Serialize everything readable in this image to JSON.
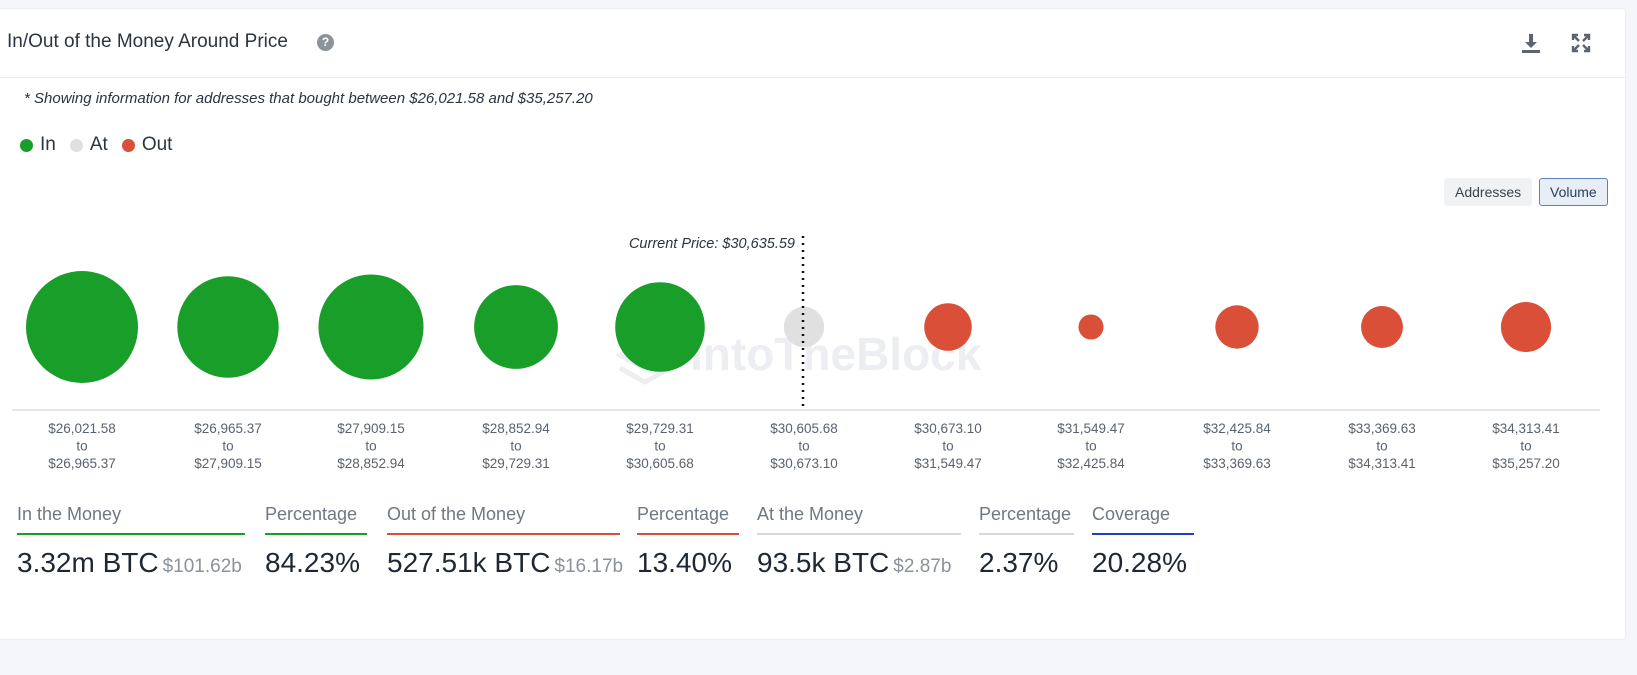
{
  "header": {
    "title": "In/Out of the Money Around Price",
    "help_icon": "question-circle-icon",
    "download_icon": "download-icon",
    "expand_icon": "expand-icon"
  },
  "note": "* Showing information for addresses that bought between $26,021.58 and $35,257.20",
  "legend": [
    {
      "label": "In",
      "color": "#1a9e2a"
    },
    {
      "label": "At",
      "color": "#e0e0e0"
    },
    {
      "label": "Out",
      "color": "#d94f38"
    }
  ],
  "toggles": {
    "addresses": "Addresses",
    "volume": "Volume",
    "selected": "Volume"
  },
  "chart_data": {
    "type": "bubble",
    "current_price_label": "Current Price: $30,635.59",
    "current_price": 30635.59,
    "watermark": "IntoTheBlock",
    "categories": [
      {
        "from": "$26,021.58",
        "to": "$26,965.37",
        "status": "In",
        "relative_size": 1.0
      },
      {
        "from": "$26,965.37",
        "to": "$27,909.15",
        "status": "In",
        "relative_size": 0.82
      },
      {
        "from": "$27,909.15",
        "to": "$28,852.94",
        "status": "In",
        "relative_size": 0.88
      },
      {
        "from": "$28,852.94",
        "to": "$29,729.31",
        "status": "In",
        "relative_size": 0.56
      },
      {
        "from": "$29,729.31",
        "to": "$30,605.68",
        "status": "In",
        "relative_size": 0.64
      },
      {
        "from": "$30,605.68",
        "to": "$30,673.10",
        "status": "At",
        "relative_size": 0.13
      },
      {
        "from": "$30,673.10",
        "to": "$31,549.47",
        "status": "Out",
        "relative_size": 0.18
      },
      {
        "from": "$31,549.47",
        "to": "$32,425.84",
        "status": "Out",
        "relative_size": 0.05
      },
      {
        "from": "$32,425.84",
        "to": "$33,369.63",
        "status": "Out",
        "relative_size": 0.15
      },
      {
        "from": "$33,369.63",
        "to": "$34,313.41",
        "status": "Out",
        "relative_size": 0.14
      },
      {
        "from": "$34,313.41",
        "to": "$35,257.20",
        "status": "Out",
        "relative_size": 0.2
      }
    ],
    "to_word": "to"
  },
  "stats": [
    {
      "label": "In the Money",
      "value": "3.32m BTC",
      "sub": "$101.62b",
      "color": "#1a9e2a"
    },
    {
      "label": "Percentage",
      "value": "84.23%",
      "sub": "",
      "color": "#1a9e2a"
    },
    {
      "label": "Out of the Money",
      "value": "527.51k BTC",
      "sub": "$16.17b",
      "color": "#d94f38"
    },
    {
      "label": "Percentage",
      "value": "13.40%",
      "sub": "",
      "color": "#d94f38"
    },
    {
      "label": "At the Money",
      "value": "93.5k BTC",
      "sub": "$2.87b",
      "color": "#d8d8d8"
    },
    {
      "label": "Percentage",
      "value": "2.37%",
      "sub": "",
      "color": "#d8d8d8"
    },
    {
      "label": "Coverage",
      "value": "20.28%",
      "sub": "",
      "color": "#1f3fbf"
    }
  ]
}
